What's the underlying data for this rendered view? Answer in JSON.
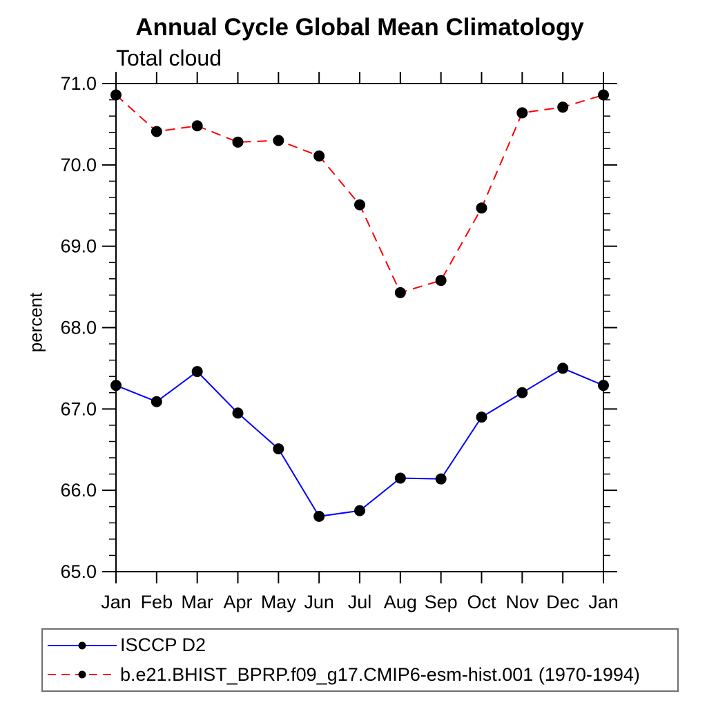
{
  "page": {
    "background": "#ffffff"
  },
  "chart_data": {
    "type": "line",
    "title": "Annual Cycle Global Mean Climatology",
    "subtitle": "Total cloud",
    "ylabel": "percent",
    "xlabel": "",
    "ylim": [
      65.0,
      71.0
    ],
    "y_major_ticks": [
      65.0,
      66.0,
      67.0,
      68.0,
      69.0,
      70.0,
      71.0
    ],
    "y_tick_labels": [
      "65.0",
      "66.0",
      "67.0",
      "68.0",
      "69.0",
      "70.0",
      "71.0"
    ],
    "y_minor_step": 0.2,
    "grid": false,
    "axis_color": "#000000",
    "text_color": "#000000",
    "categories": [
      "Jan",
      "Feb",
      "Mar",
      "Apr",
      "May",
      "Jun",
      "Jul",
      "Aug",
      "Sep",
      "Oct",
      "Nov",
      "Dec",
      "Jan"
    ],
    "series": [
      {
        "name": "ISCCP D2",
        "color": "#0000ff",
        "line_style": "solid",
        "marker": "filled-circle",
        "marker_color": "#000000",
        "values": [
          67.29,
          67.09,
          67.46,
          66.95,
          66.51,
          65.68,
          65.75,
          66.15,
          66.14,
          66.9,
          67.2,
          67.5,
          67.29
        ]
      },
      {
        "name": "b.e21.BHIST_BPRP.f09_g17.CMIP6-esm-hist.001 (1970-1994)",
        "color": "#ff0000",
        "line_style": "dashed",
        "marker": "filled-circle",
        "marker_color": "#000000",
        "values": [
          70.86,
          70.41,
          70.48,
          70.28,
          70.3,
          70.11,
          69.51,
          68.43,
          68.58,
          69.47,
          70.64,
          70.71,
          70.86
        ]
      }
    ],
    "legend": {
      "position": "bottom-left"
    }
  }
}
